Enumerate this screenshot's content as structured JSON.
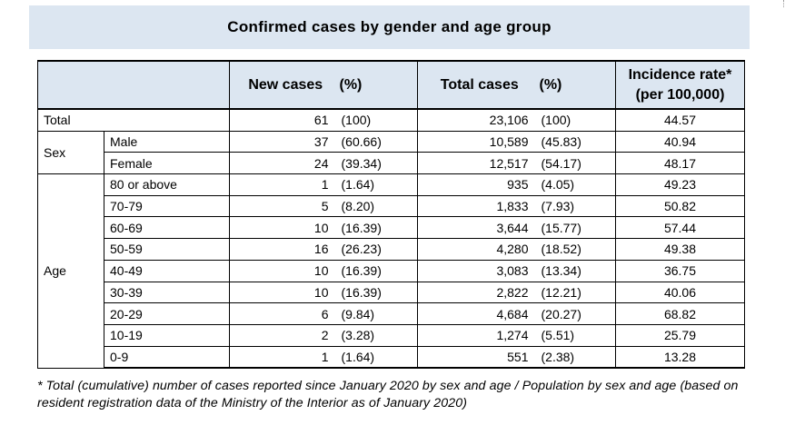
{
  "title": "Confirmed cases by gender and age group",
  "headers": {
    "new_cases": "New cases",
    "new_pct": "(%)",
    "total_cases": "Total cases",
    "total_pct": "(%)",
    "incidence_line1": "Incidence rate*",
    "incidence_line2": "(per 100,000)"
  },
  "total": {
    "label": "Total",
    "new": "61",
    "new_pct": "(100)",
    "total": "23,106",
    "total_pct": "(100)",
    "rate": "44.57"
  },
  "sex": {
    "label": "Sex",
    "rows": [
      {
        "label": "Male",
        "new": "37",
        "new_pct": "(60.66)",
        "total": "10,589",
        "total_pct": "(45.83)",
        "rate": "40.94"
      },
      {
        "label": "Female",
        "new": "24",
        "new_pct": "(39.34)",
        "total": "12,517",
        "total_pct": "(54.17)",
        "rate": "48.17"
      }
    ]
  },
  "age": {
    "label": "Age",
    "rows": [
      {
        "label": "80 or above",
        "new": "1",
        "new_pct": "(1.64)",
        "total": "935",
        "total_pct": "(4.05)",
        "rate": "49.23"
      },
      {
        "label": "70-79",
        "new": "5",
        "new_pct": "(8.20)",
        "total": "1,833",
        "total_pct": "(7.93)",
        "rate": "50.82"
      },
      {
        "label": "60-69",
        "new": "10",
        "new_pct": "(16.39)",
        "total": "3,644",
        "total_pct": "(15.77)",
        "rate": "57.44"
      },
      {
        "label": "50-59",
        "new": "16",
        "new_pct": "(26.23)",
        "total": "4,280",
        "total_pct": "(18.52)",
        "rate": "49.38"
      },
      {
        "label": "40-49",
        "new": "10",
        "new_pct": "(16.39)",
        "total": "3,083",
        "total_pct": "(13.34)",
        "rate": "36.75"
      },
      {
        "label": "30-39",
        "new": "10",
        "new_pct": "(16.39)",
        "total": "2,822",
        "total_pct": "(12.21)",
        "rate": "40.06"
      },
      {
        "label": "20-29",
        "new": "6",
        "new_pct": "(9.84)",
        "total": "4,684",
        "total_pct": "(20.27)",
        "rate": "68.82"
      },
      {
        "label": "10-19",
        "new": "2",
        "new_pct": "(3.28)",
        "total": "1,274",
        "total_pct": "(5.51)",
        "rate": "25.79"
      },
      {
        "label": "0-9",
        "new": "1",
        "new_pct": "(1.64)",
        "total": "551",
        "total_pct": "(2.38)",
        "rate": "13.28"
      }
    ]
  },
  "footnote": "* Total (cumulative) number of cases reported since January 2020 by sex and age / Population by sex and age (based on resident registration data of the Ministry of the Interior as of January 2020)"
}
